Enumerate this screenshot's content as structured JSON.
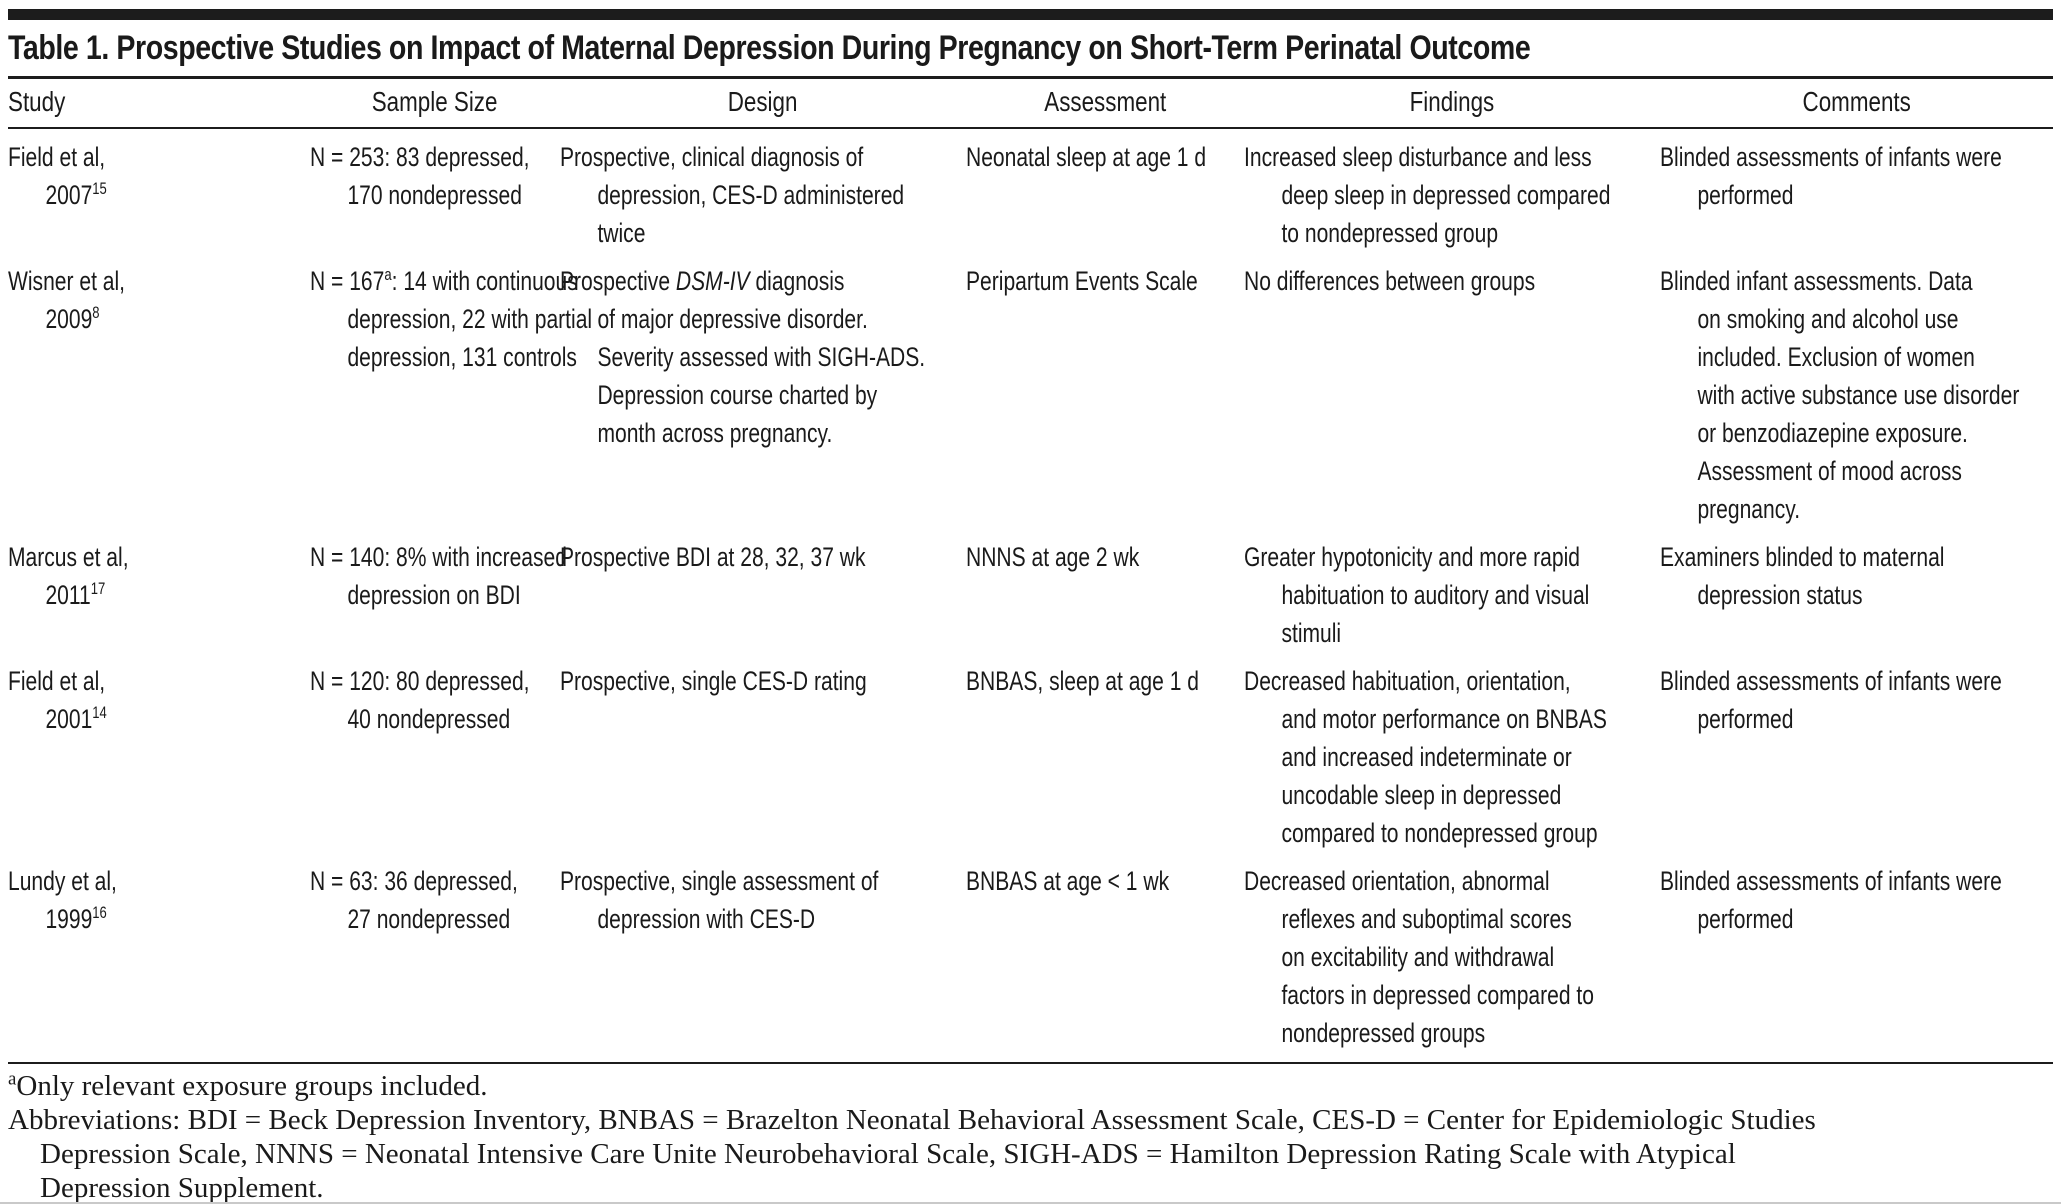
{
  "colors": {
    "text": "#1a1a1a",
    "rule": "#1c1c1c",
    "background": "#ffffff"
  },
  "document": {
    "title": "Table 1. Prospective Studies on Impact of Maternal Depression During Pregnancy on Short-Term Perinatal Outcome",
    "columns": [
      "Study",
      "Sample Size",
      "Design",
      "Assessment",
      "Findings",
      "Comments"
    ],
    "rows": [
      {
        "study": [
          [
            "Field et al,"
          ],
          [
            "2007",
            {
              "sup": "15"
            }
          ]
        ],
        "sample_size": [
          [
            "N = 253: 83 depressed,"
          ],
          [
            "170 nondepressed"
          ]
        ],
        "design": [
          [
            "Prospective, clinical diagnosis of"
          ],
          [
            "depression, CES-D administered"
          ],
          [
            "twice"
          ]
        ],
        "assessment": [
          [
            "Neonatal sleep at age 1 d"
          ]
        ],
        "findings": [
          [
            "Increased sleep disturbance and less"
          ],
          [
            "deep sleep in depressed compared"
          ],
          [
            "to nondepressed group"
          ]
        ],
        "comments": [
          [
            "Blinded assessments of infants were"
          ],
          [
            "performed"
          ]
        ]
      },
      {
        "study": [
          [
            "Wisner et al,"
          ],
          [
            "2009",
            {
              "sup": "8"
            }
          ]
        ],
        "sample_size": [
          [
            "N = 167",
            {
              "sup": "a"
            },
            ": 14 with continuous"
          ],
          [
            "depression, 22 with partial"
          ],
          [
            "depression, 131 controls"
          ]
        ],
        "design": [
          [
            "Prospective ",
            {
              "i": "DSM-IV"
            },
            " diagnosis"
          ],
          [
            "of major depressive disorder."
          ],
          [
            "Severity assessed with SIGH-ADS."
          ],
          [
            "Depression course charted by"
          ],
          [
            "month across pregnancy."
          ]
        ],
        "assessment": [
          [
            "Peripartum Events Scale"
          ]
        ],
        "findings": [
          [
            "No differences between groups"
          ]
        ],
        "comments": [
          [
            "Blinded infant assessments. Data"
          ],
          [
            "on smoking and alcohol use"
          ],
          [
            "included. Exclusion of women"
          ],
          [
            "with active substance use disorder"
          ],
          [
            "or benzodiazepine exposure."
          ],
          [
            "Assessment of mood across"
          ],
          [
            "pregnancy."
          ]
        ]
      },
      {
        "study": [
          [
            "Marcus et al,"
          ],
          [
            "2011",
            {
              "sup": "17"
            }
          ]
        ],
        "sample_size": [
          [
            "N = 140: 8% with increased"
          ],
          [
            "depression on BDI"
          ]
        ],
        "design": [
          [
            "Prospective BDI at 28, 32, 37 wk"
          ]
        ],
        "assessment": [
          [
            "NNNS at age 2 wk"
          ]
        ],
        "findings": [
          [
            "Greater hypotonicity and more rapid"
          ],
          [
            "habituation to auditory and visual"
          ],
          [
            "stimuli"
          ]
        ],
        "comments": [
          [
            "Examiners blinded to maternal"
          ],
          [
            "depression status"
          ]
        ]
      },
      {
        "study": [
          [
            "Field et al,"
          ],
          [
            "2001",
            {
              "sup": "14"
            }
          ]
        ],
        "sample_size": [
          [
            "N = 120: 80 depressed,"
          ],
          [
            "40 nondepressed"
          ]
        ],
        "design": [
          [
            "Prospective, single CES-D rating"
          ]
        ],
        "assessment": [
          [
            "BNBAS, sleep at age 1 d"
          ]
        ],
        "findings": [
          [
            "Decreased habituation, orientation,"
          ],
          [
            "and motor performance on BNBAS"
          ],
          [
            "and increased indeterminate or"
          ],
          [
            "uncodable sleep in depressed"
          ],
          [
            "compared to nondepressed group"
          ]
        ],
        "comments": [
          [
            "Blinded assessments of infants were"
          ],
          [
            "performed"
          ]
        ]
      },
      {
        "study": [
          [
            "Lundy et al,"
          ],
          [
            "1999",
            {
              "sup": "16"
            }
          ]
        ],
        "sample_size": [
          [
            "N = 63: 36 depressed,"
          ],
          [
            "27 nondepressed"
          ]
        ],
        "design": [
          [
            "Prospective, single assessment of"
          ],
          [
            "depression with CES-D"
          ]
        ],
        "assessment": [
          [
            "BNBAS at age < 1 wk"
          ]
        ],
        "findings": [
          [
            "Decreased orientation, abnormal"
          ],
          [
            "reflexes and suboptimal scores"
          ],
          [
            "on excitability and withdrawal"
          ],
          [
            "factors in depressed compared to"
          ],
          [
            "nondepressed groups"
          ]
        ],
        "comments": [
          [
            "Blinded assessments of infants were"
          ],
          [
            "performed"
          ]
        ]
      }
    ],
    "footnotes": [
      [
        [
          {
            "sup": "a"
          },
          "Only relevant exposure groups included."
        ]
      ],
      [
        [
          "Abbreviations: BDI = Beck Depression Inventory, BNBAS = Brazelton Neonatal Behavioral Assessment Scale, CES-D = Center for Epidemiologic Studies"
        ],
        [
          "Depression Scale, NNNS = Neonatal Intensive Care Unite Neurobehavioral Scale, SIGH-ADS = Hamilton Depression Rating Scale with Atypical"
        ],
        [
          "Depression Supplement."
        ]
      ]
    ]
  }
}
